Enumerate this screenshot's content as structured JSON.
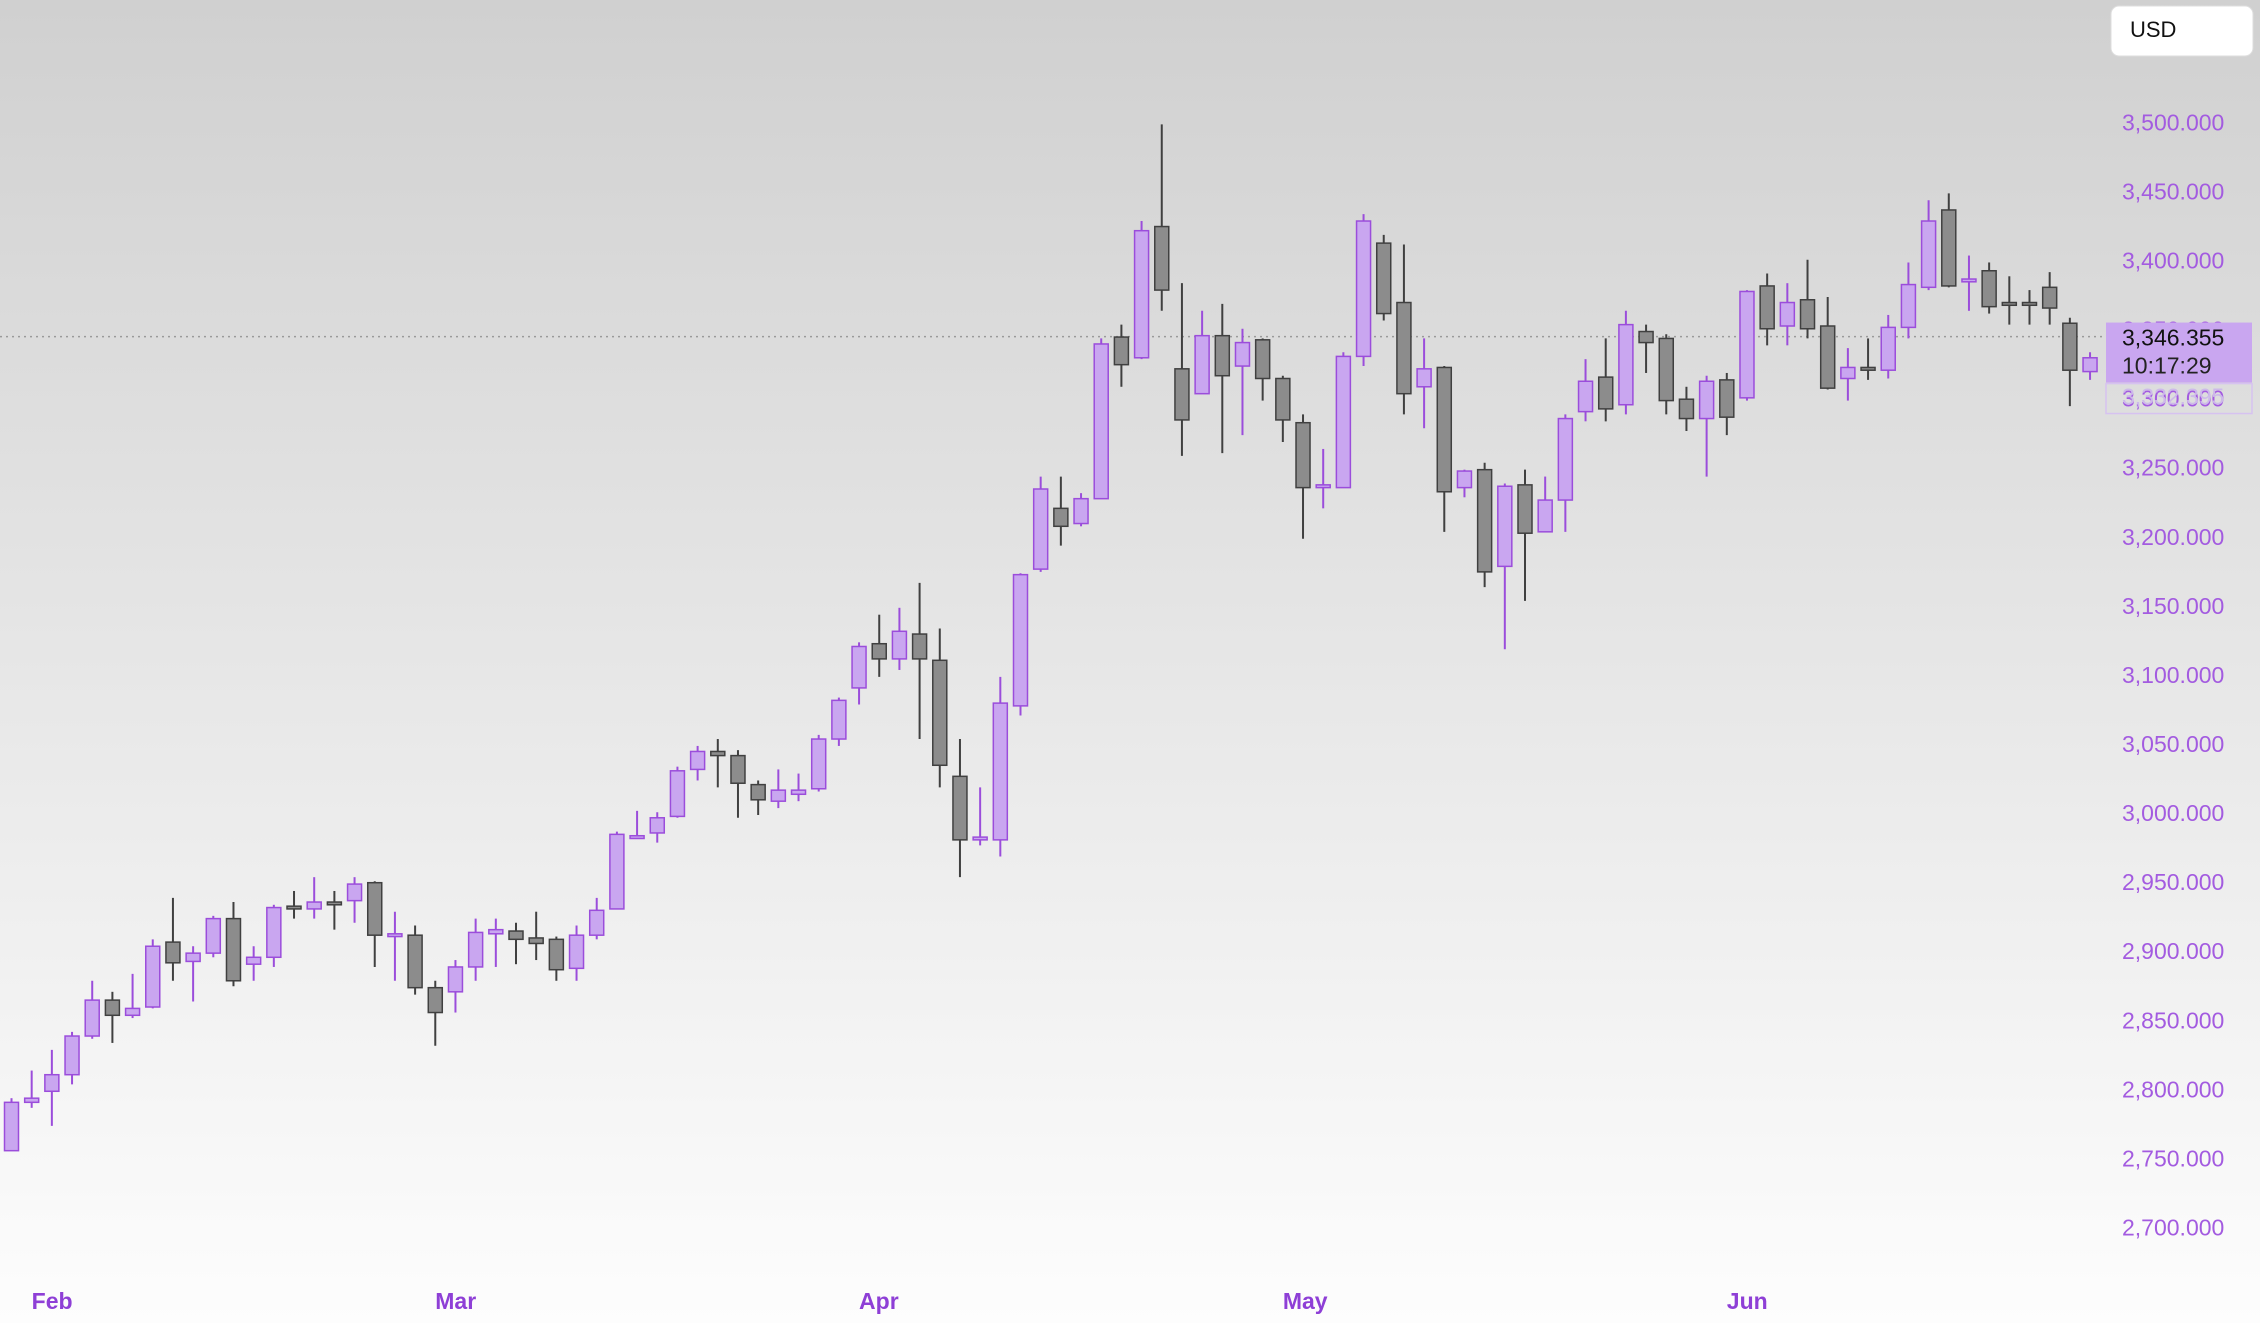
{
  "chart_data": {
    "type": "candlestick",
    "currency": "USD",
    "last_price": {
      "value": 3346.355,
      "label": "3,346.355"
    },
    "countdown": "10:17:29",
    "prev_price": {
      "value": 3332.395,
      "label": "3,332.395"
    },
    "up_color": "#c9a6f0",
    "up_edge": "#9b4ddb",
    "down_color": "#8c8c8c",
    "down_edge": "#404040",
    "categories": [
      null,
      "Feb",
      null,
      null,
      null,
      null,
      null,
      null,
      null,
      null,
      null,
      null,
      null,
      null,
      null,
      null,
      null,
      null,
      null,
      null,
      null,
      "Mar",
      null,
      null,
      null,
      null,
      null,
      null,
      null,
      null,
      null,
      null,
      null,
      null,
      null,
      null,
      null,
      null,
      null,
      null,
      null,
      null,
      "Apr",
      null,
      null,
      null,
      null,
      null,
      null,
      null,
      null,
      null,
      null,
      null,
      null,
      null,
      null,
      null,
      null,
      null,
      null,
      null,
      null,
      "May",
      null,
      null,
      null,
      null,
      null,
      null,
      null,
      null,
      null,
      null,
      null,
      null,
      null,
      null,
      null,
      null,
      null,
      null,
      null,
      null,
      null,
      "Jun",
      null,
      null,
      null,
      null,
      null,
      null,
      null,
      null,
      null,
      null,
      null,
      null,
      null,
      null,
      null,
      null,
      null,
      null
    ],
    "open": [
      2757,
      2792,
      2800,
      2812,
      2840,
      2866,
      2855,
      2861,
      2908,
      2894,
      2900,
      2925,
      2892,
      2897,
      2934,
      2932,
      2937,
      2938,
      2951,
      2912,
      2913,
      2875,
      2872,
      2890,
      2914,
      2916,
      2911,
      2910,
      2889,
      2913,
      2932,
      2983,
      2987,
      2999,
      3033,
      3046,
      3043,
      3022,
      3010,
      3015,
      3019,
      3055,
      3092,
      3124,
      3113,
      3131,
      3112,
      3028,
      2982,
      2982,
      3079,
      3178,
      3222,
      3211,
      3229,
      3346,
      3331,
      3426,
      3323,
      3305,
      3347,
      3325,
      3344,
      3316,
      3284,
      3237,
      3237,
      3332,
      3414,
      3371,
      3310,
      3324,
      3237,
      3250,
      3180,
      3239,
      3205,
      3228,
      3292,
      3317,
      3297,
      3350,
      3345,
      3301,
      3287,
      3315,
      3302,
      3383,
      3354,
      3373,
      3354,
      3316,
      3324,
      3322,
      3353,
      3382,
      3438,
      3386,
      3394,
      3371,
      3371,
      3382,
      3356,
      3321
    ],
    "high": [
      2795,
      2815,
      2830,
      2843,
      2880,
      2872,
      2885,
      2910,
      2940,
      2905,
      2927,
      2937,
      2905,
      2935,
      2945,
      2955,
      2945,
      2955,
      2952,
      2930,
      2920,
      2880,
      2895,
      2925,
      2925,
      2922,
      2930,
      2912,
      2920,
      2940,
      2988,
      3003,
      3002,
      3035,
      3050,
      3055,
      3047,
      3025,
      3033,
      3030,
      3058,
      3085,
      3125,
      3145,
      3150,
      3168,
      3135,
      3055,
      3020,
      3100,
      3175,
      3245,
      3245,
      3233,
      3345,
      3355,
      3430,
      3500,
      3385,
      3365,
      3370,
      3352,
      3345,
      3318,
      3290,
      3265,
      3335,
      3435,
      3420,
      3413,
      3345,
      3325,
      3250,
      3255,
      3240,
      3250,
      3245,
      3290,
      3330,
      3345,
      3365,
      3355,
      3348,
      3310,
      3318,
      3320,
      3380,
      3392,
      3385,
      3402,
      3375,
      3338,
      3345,
      3362,
      3400,
      3445,
      3450,
      3405,
      3400,
      3390,
      3380,
      3393,
      3360,
      3335
    ],
    "low": [
      2757,
      2788,
      2775,
      2805,
      2838,
      2835,
      2853,
      2860,
      2880,
      2865,
      2897,
      2876,
      2880,
      2890,
      2925,
      2925,
      2917,
      2922,
      2890,
      2880,
      2870,
      2833,
      2857,
      2880,
      2890,
      2892,
      2895,
      2880,
      2880,
      2910,
      2932,
      2983,
      2980,
      2998,
      3025,
      3020,
      2998,
      3000,
      3005,
      3010,
      3017,
      3050,
      3080,
      3100,
      3105,
      3055,
      3020,
      2955,
      2978,
      2970,
      3072,
      3176,
      3195,
      3209,
      3229,
      3310,
      3330,
      3365,
      3260,
      3305,
      3262,
      3275,
      3300,
      3270,
      3200,
      3222,
      3237,
      3325,
      3358,
      3290,
      3280,
      3205,
      3230,
      3165,
      3120,
      3155,
      3205,
      3205,
      3285,
      3285,
      3290,
      3320,
      3290,
      3278,
      3245,
      3275,
      3300,
      3340,
      3340,
      3345,
      3308,
      3300,
      3315,
      3316,
      3345,
      3380,
      3382,
      3365,
      3363,
      3355,
      3355,
      3355,
      3296,
      3315
    ],
    "close": [
      2792,
      2795,
      2812,
      2840,
      2866,
      2855,
      2860,
      2905,
      2893,
      2900,
      2925,
      2880,
      2897,
      2933,
      2932,
      2937,
      2935,
      2950,
      2913,
      2914,
      2875,
      2857,
      2890,
      2915,
      2917,
      2910,
      2907,
      2888,
      2913,
      2931,
      2986,
      2985,
      2998,
      3032,
      3046,
      3043,
      3023,
      3011,
      3018,
      3018,
      3055,
      3083,
      3122,
      3113,
      3133,
      3113,
      3036,
      2982,
      2984,
      3081,
      3174,
      3236,
      3209,
      3229,
      3341,
      3326,
      3423,
      3380,
      3286,
      3347,
      3318,
      3342,
      3316,
      3286,
      3237,
      3239,
      3332,
      3430,
      3363,
      3305,
      3323,
      3234,
      3249,
      3176,
      3238,
      3204,
      3228,
      3287,
      3314,
      3294,
      3355,
      3342,
      3300,
      3287,
      3314,
      3288,
      3379,
      3352,
      3371,
      3352,
      3309,
      3324,
      3322,
      3353,
      3384,
      3430,
      3383,
      3388,
      3368,
      3369,
      3369,
      3367,
      3322,
      3331
    ],
    "ylim": [
      2667,
      3590
    ],
    "yticks": [
      {
        "value": 2700,
        "label": "2,700.000"
      },
      {
        "value": 2750,
        "label": "2,750.000"
      },
      {
        "value": 2800,
        "label": "2,800.000"
      },
      {
        "value": 2850,
        "label": "2,850.000"
      },
      {
        "value": 2900,
        "label": "2,900.000"
      },
      {
        "value": 2950,
        "label": "2,950.000"
      },
      {
        "value": 3000,
        "label": "3,000.000"
      },
      {
        "value": 3050,
        "label": "3,050.000"
      },
      {
        "value": 3100,
        "label": "3,100.000"
      },
      {
        "value": 3150,
        "label": "3,150.000"
      },
      {
        "value": 3200,
        "label": "3,200.000"
      },
      {
        "value": 3250,
        "label": "3,250.000"
      },
      {
        "value": 3300,
        "label": "3,300.000"
      },
      {
        "value": 3350,
        "label": "3,350.000"
      },
      {
        "value": 3400,
        "label": "3,400.000"
      },
      {
        "value": 3450,
        "label": "3,450.000"
      },
      {
        "value": 3500,
        "label": "3,500.000"
      }
    ]
  }
}
